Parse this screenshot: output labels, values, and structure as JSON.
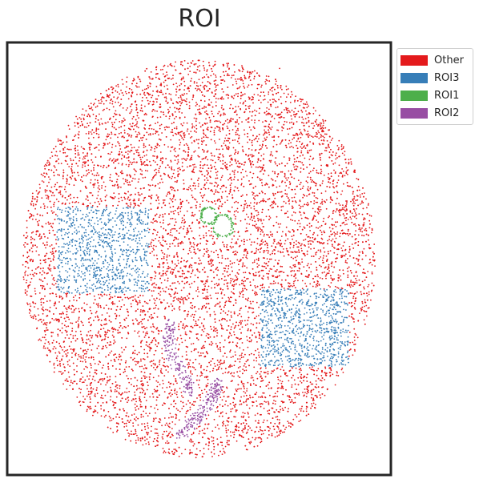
{
  "chart_data": {
    "type": "scatter",
    "title": "ROI",
    "xlabel": "",
    "ylabel": "",
    "grid": false,
    "axis_ticks": "none",
    "legend_position": "outside-top-right",
    "series": [
      {
        "name": "Other",
        "color": "#e41a1c",
        "regions": [
          {
            "shape": "disk-remainder",
            "center": [
              0.5,
              0.5
            ],
            "radius": 0.46,
            "approx_points": 9000
          },
          {
            "shape": "point",
            "x": 0.71,
            "y": 0.94
          }
        ]
      },
      {
        "name": "ROI3",
        "color": "#377eb8",
        "regions": [
          {
            "shape": "rect",
            "x_range": [
              0.13,
              0.37
            ],
            "y_range": [
              0.42,
              0.62
            ],
            "approx_points": 900
          },
          {
            "shape": "rect",
            "x_range": [
              0.66,
              0.89
            ],
            "y_range": [
              0.25,
              0.43
            ],
            "approx_points": 900
          }
        ]
      },
      {
        "name": "ROI1",
        "color": "#4daf4a",
        "regions": [
          {
            "shape": "ring",
            "center": [
              0.525,
              0.6
            ],
            "radius": 0.02,
            "approx_points": 60
          },
          {
            "shape": "ring",
            "center": [
              0.563,
              0.575
            ],
            "radius": 0.025,
            "approx_points": 70
          }
        ]
      },
      {
        "name": "ROI2",
        "color": "#984ea3",
        "regions": [
          {
            "shape": "curve",
            "points": [
              [
                0.43,
                0.36
              ],
              [
                0.42,
                0.32
              ],
              [
                0.43,
                0.27
              ],
              [
                0.46,
                0.23
              ],
              [
                0.48,
                0.19
              ]
            ],
            "approx_points": 180
          },
          {
            "shape": "curve",
            "points": [
              [
                0.55,
                0.22
              ],
              [
                0.53,
                0.17
              ],
              [
                0.49,
                0.13
              ],
              [
                0.45,
                0.09
              ]
            ],
            "approx_points": 200
          }
        ]
      }
    ]
  }
}
